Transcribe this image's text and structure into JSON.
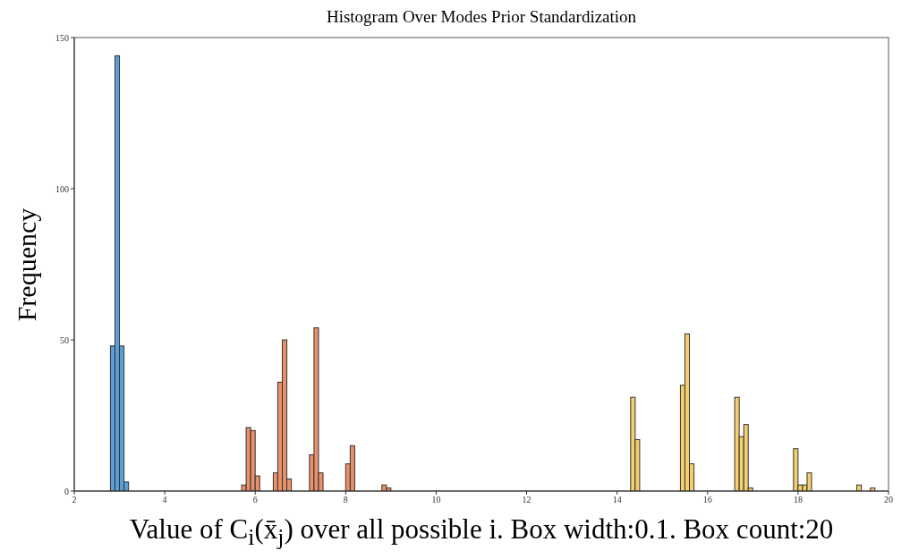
{
  "chart_data": {
    "type": "histogram",
    "title": "Histogram Over Modes Prior Standardization",
    "xlabel": "Value of C$_{i}$(x̄$_{j}$) over all possible i. Box width:0.1. Box count:20",
    "ylabel": "Frequency",
    "bins": [
      2.8,
      2.9,
      3.0,
      3.1,
      3.2,
      3.3,
      3.4,
      3.5,
      3.6,
      3.7,
      3.8,
      3.9,
      4.0,
      4.1,
      4.2,
      4.3,
      4.4,
      4.5,
      4.6,
      4.7,
      4.8,
      4.9,
      5.0,
      5.1,
      5.2,
      5.3,
      5.4,
      5.5,
      5.6,
      5.7,
      5.8,
      5.9,
      6.0,
      6.1,
      6.2,
      6.3,
      6.4,
      6.5,
      6.6,
      6.7,
      6.8,
      6.9,
      7.0,
      7.1,
      7.2,
      7.3,
      7.4,
      7.5,
      7.6,
      7.7,
      7.8,
      7.9,
      8.0,
      8.1,
      8.2,
      8.3,
      8.4,
      8.5,
      8.6,
      8.7,
      8.8,
      8.9,
      9.0,
      9.1,
      9.2,
      9.3,
      9.4,
      9.5,
      9.6,
      9.7,
      9.8,
      9.9,
      10.0,
      10.1,
      10.2,
      10.3,
      10.4,
      10.5,
      10.6,
      10.7,
      10.8,
      10.9,
      11.0,
      11.1,
      11.2,
      11.3,
      11.4,
      11.5,
      11.6,
      11.7,
      11.8,
      11.9,
      12.0,
      12.1,
      12.2,
      12.3,
      12.4,
      12.5,
      12.6,
      12.7,
      12.8,
      12.9,
      13.0,
      13.1,
      13.2,
      13.3,
      13.4,
      13.5,
      13.6,
      13.7,
      13.8,
      13.9,
      14.0,
      14.1,
      14.2,
      14.3,
      14.4,
      14.5,
      14.6,
      14.7,
      14.8,
      14.9,
      15.0,
      15.1,
      15.2,
      15.3,
      15.4,
      15.5,
      15.6,
      15.7,
      15.8,
      15.9,
      16.0,
      16.1,
      16.2,
      16.3,
      16.4,
      16.5,
      16.6,
      16.7,
      16.8,
      16.9,
      17.0,
      17.1,
      17.2,
      17.3,
      17.4,
      17.5,
      17.6,
      17.7,
      17.8,
      17.9,
      18.0,
      18.1,
      18.2,
      18.3,
      18.4,
      18.5,
      18.6,
      18.7,
      18.8,
      18.9,
      19.0,
      19.1,
      19.2,
      19.3,
      19.4,
      19.5,
      19.6,
      19.7
    ],
    "series": [
      {
        "color": "#5b9fd6",
        "values": [
          48,
          144,
          48,
          3,
          null,
          null,
          null,
          null,
          null,
          null,
          null,
          null,
          null,
          null,
          null,
          null,
          null,
          null,
          null,
          null,
          null,
          null,
          null,
          null,
          null,
          null,
          null,
          null,
          null,
          null,
          null,
          null,
          null,
          null,
          null,
          null,
          null,
          null,
          null,
          null,
          null,
          null,
          null,
          null,
          null,
          null,
          null,
          null,
          null,
          null,
          null,
          null,
          null,
          null,
          null,
          null,
          null,
          null,
          null,
          null,
          null,
          null,
          null,
          null,
          null,
          null,
          null,
          null,
          null,
          null,
          null,
          null,
          null,
          null,
          null,
          null,
          null,
          null,
          null,
          null,
          null,
          null,
          null,
          null,
          null,
          null,
          null,
          null,
          null,
          null,
          null,
          null,
          null,
          null,
          null,
          null,
          null,
          null,
          null,
          null,
          null,
          null,
          null,
          null,
          null,
          null,
          null,
          null,
          null,
          null,
          null,
          null,
          null,
          null,
          null,
          null,
          null,
          null,
          null,
          null,
          null,
          null,
          null,
          null,
          null,
          null,
          null,
          null,
          null,
          null,
          null,
          null,
          null,
          null,
          null,
          null,
          null,
          null,
          null,
          null,
          null,
          null,
          null,
          null,
          null,
          null,
          null,
          null,
          null,
          null,
          null,
          null,
          null,
          null,
          null,
          null,
          null,
          null,
          null,
          null,
          null,
          null,
          null,
          null,
          null,
          null,
          null,
          null,
          null
        ]
      },
      {
        "color": "#e8916a",
        "values": [
          null,
          null,
          null,
          null,
          null,
          null,
          null,
          null,
          null,
          null,
          null,
          null,
          null,
          null,
          null,
          null,
          null,
          null,
          null,
          null,
          null,
          null,
          null,
          null,
          null,
          null,
          null,
          null,
          null,
          2,
          21,
          20,
          5,
          0,
          0,
          0,
          6,
          36,
          50,
          4,
          0,
          0,
          0,
          0,
          12,
          54,
          6,
          0,
          0,
          0,
          0,
          0,
          9,
          15,
          0,
          0,
          0,
          0,
          0,
          0,
          2,
          1,
          null,
          null,
          null,
          null,
          null,
          null,
          null,
          null,
          null,
          null,
          null,
          null,
          null,
          null,
          null,
          null,
          null,
          null,
          null,
          null,
          null,
          null,
          null,
          null,
          null,
          null,
          null,
          null,
          null,
          null,
          null,
          null,
          null,
          null,
          null,
          null,
          null,
          null,
          null,
          null,
          null,
          null,
          null,
          null,
          null,
          null,
          null,
          null,
          null,
          null,
          null,
          null,
          null,
          null,
          null,
          null,
          null,
          null,
          null,
          null,
          null,
          null,
          null,
          null,
          null,
          null,
          null,
          null,
          null,
          null,
          null,
          null,
          null,
          null,
          null,
          null,
          null,
          null,
          null,
          null,
          null,
          null,
          null,
          null,
          null,
          null,
          null,
          null,
          null,
          null,
          null,
          null,
          null,
          null,
          null,
          null,
          null,
          null,
          null,
          null,
          null,
          null,
          null,
          null,
          null,
          null,
          null
        ]
      },
      {
        "color": "#f4cf70",
        "values": [
          null,
          null,
          null,
          null,
          null,
          null,
          null,
          null,
          null,
          null,
          null,
          null,
          null,
          null,
          null,
          null,
          null,
          null,
          null,
          null,
          null,
          null,
          null,
          null,
          null,
          null,
          null,
          null,
          null,
          null,
          null,
          null,
          null,
          null,
          null,
          null,
          null,
          null,
          null,
          null,
          null,
          null,
          null,
          null,
          null,
          null,
          null,
          null,
          null,
          null,
          null,
          null,
          null,
          null,
          null,
          null,
          null,
          null,
          null,
          null,
          null,
          null,
          null,
          null,
          null,
          null,
          null,
          null,
          null,
          null,
          null,
          null,
          null,
          null,
          null,
          null,
          null,
          null,
          null,
          null,
          null,
          null,
          null,
          null,
          null,
          null,
          null,
          null,
          null,
          null,
          null,
          null,
          null,
          null,
          null,
          null,
          null,
          null,
          null,
          null,
          null,
          null,
          null,
          null,
          null,
          null,
          null,
          null,
          null,
          null,
          null,
          null,
          null,
          null,
          null,
          31,
          17,
          0,
          0,
          0,
          0,
          0,
          0,
          0,
          0,
          0,
          35,
          52,
          9,
          0,
          0,
          0,
          0,
          0,
          0,
          0,
          0,
          0,
          31,
          18,
          22,
          1,
          0,
          0,
          0,
          0,
          0,
          0,
          0,
          0,
          0,
          14,
          2,
          2,
          6,
          0,
          0,
          0,
          0,
          0,
          0,
          0,
          0,
          0,
          0,
          2,
          0,
          0,
          1
        ]
      }
    ],
    "xlim": [
      2,
      20
    ],
    "xticks": [
      2,
      4,
      6,
      8,
      10,
      12,
      14,
      16,
      18,
      20
    ],
    "ylim": [
      0,
      150
    ],
    "yticks": [
      0,
      50,
      100,
      150
    ]
  }
}
